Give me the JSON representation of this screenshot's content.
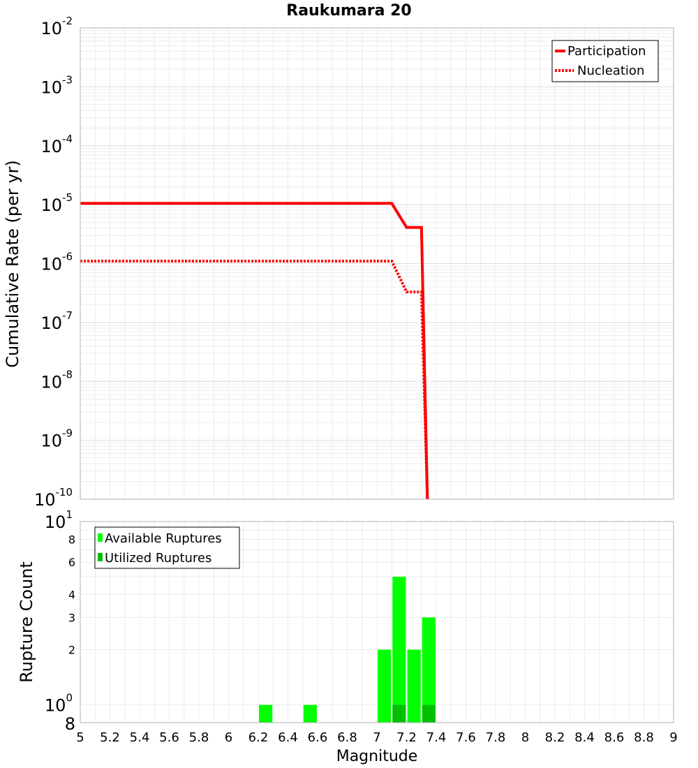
{
  "chart_data": [
    {
      "type": "line",
      "title": "Raukumara 20",
      "xlabel": "",
      "ylabel": "Cumulative Rate (per yr)",
      "yscale": "log",
      "xlim": [
        5,
        9
      ],
      "ylim": [
        1e-10,
        0.01
      ],
      "y_tick_labels": [
        {
          "base": "10",
          "exp": "-2"
        },
        {
          "base": "10",
          "exp": "-3"
        },
        {
          "base": "10",
          "exp": "-4"
        },
        {
          "base": "10",
          "exp": "-5"
        },
        {
          "base": "10",
          "exp": "-6"
        },
        {
          "base": "10",
          "exp": "-7"
        },
        {
          "base": "10",
          "exp": "-8"
        },
        {
          "base": "10",
          "exp": "-9"
        },
        {
          "base": "10",
          "exp": "-10"
        }
      ],
      "grid": true,
      "legend_position": "top-right",
      "series": [
        {
          "name": "Participation",
          "style": "solid",
          "color": "#ff0000",
          "x": [
            5.0,
            7.1,
            7.2,
            7.3,
            7.34
          ],
          "y": [
            1.05e-05,
            1.05e-05,
            4.1e-06,
            4.1e-06,
            1e-10
          ]
        },
        {
          "name": "Nucleation",
          "style": "dotted",
          "color": "#ff0000",
          "x": [
            5.0,
            7.1,
            7.2,
            7.3,
            7.34
          ],
          "y": [
            1.1e-06,
            1.1e-06,
            3.3e-07,
            3.3e-07,
            1e-10
          ]
        }
      ]
    },
    {
      "type": "bar",
      "title": "",
      "xlabel": "Magnitude",
      "ylabel": "Rupture Count",
      "yscale": "log",
      "xlim": [
        5,
        9
      ],
      "ylim": [
        0.8,
        10
      ],
      "bar_width": 0.09,
      "x_ticks": [
        "5",
        "5.2",
        "5.4",
        "5.6",
        "5.8",
        "6",
        "6.2",
        "6.4",
        "6.6",
        "6.8",
        "7",
        "7.2",
        "7.4",
        "7.6",
        "7.8",
        "8",
        "8.2",
        "8.4",
        "8.6",
        "8.8",
        "9"
      ],
      "y_tick_labels_major": [
        {
          "base": "10",
          "exp": "1"
        },
        {
          "base": "10",
          "exp": "0"
        }
      ],
      "y_tick_labels_minor": [
        {
          "value": 8,
          "label": "8"
        },
        {
          "value": 6,
          "label": "6"
        },
        {
          "value": 4,
          "label": "4"
        },
        {
          "value": 3,
          "label": "3"
        },
        {
          "value": 2,
          "label": "2"
        }
      ],
      "bottom_tick_label": "8",
      "grid": true,
      "legend_position": "top-left",
      "series": [
        {
          "name": "Available Ruptures",
          "color": "#00ff00",
          "x": [
            6.25,
            6.55,
            7.05,
            7.15,
            7.25,
            7.35
          ],
          "values": [
            1,
            1,
            2,
            5,
            2,
            3
          ]
        },
        {
          "name": "Utilized Ruptures",
          "color": "#00c000",
          "x": [
            7.15,
            7.35
          ],
          "values": [
            1,
            1
          ]
        }
      ]
    }
  ]
}
